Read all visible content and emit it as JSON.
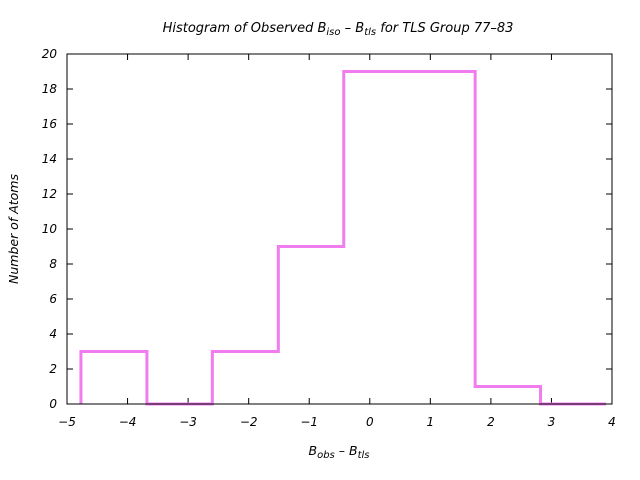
{
  "chart_data": {
    "type": "histogram",
    "title": {
      "prefix": "Histogram of Observed B",
      "sub1": "iso",
      "mid": " – B",
      "sub2": "tls",
      "suffix": "  for TLS Group 77–83"
    },
    "xlabel": {
      "main1": "B",
      "sub1": "obs",
      "mid": " – B",
      "sub2": "tls"
    },
    "ylabel": "Number of Atoms",
    "xlim": [
      -5,
      4
    ],
    "ylim": [
      0,
      20
    ],
    "xticks": [
      -5,
      -4,
      -3,
      -2,
      -1,
      0,
      1,
      2,
      3,
      4
    ],
    "yticks": [
      0,
      2,
      4,
      6,
      8,
      10,
      12,
      14,
      16,
      18,
      20
    ],
    "bins": [
      {
        "x0": -4.77,
        "x1": -3.68,
        "count": 3
      },
      {
        "x0": -3.68,
        "x1": -2.6,
        "count": 0
      },
      {
        "x0": -2.6,
        "x1": -1.51,
        "count": 3
      },
      {
        "x0": -1.51,
        "x1": -0.43,
        "count": 9
      },
      {
        "x0": -0.43,
        "x1": 1.74,
        "count": 19
      },
      {
        "x0": 1.74,
        "x1": 2.82,
        "count": 1
      },
      {
        "x0": 2.82,
        "x1": 3.9,
        "count": 0
      }
    ],
    "color": "#f07cf0",
    "grid": false
  }
}
